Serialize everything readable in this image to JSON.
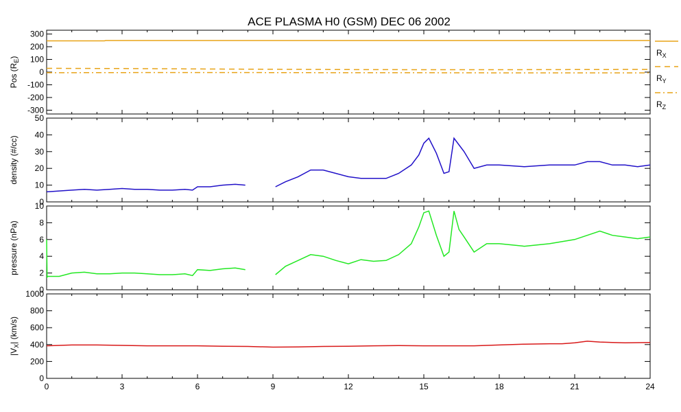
{
  "title": "ACE PLASMA H0 (GSM)   DEC 06 2002",
  "x_ticks": [
    "0",
    "3",
    "6",
    "9",
    "12",
    "15",
    "18",
    "21",
    "24"
  ],
  "colors": {
    "background": "#ffffff",
    "axes": "#000000",
    "position": "#e8a317",
    "density": "#2010c8",
    "pressure": "#22e822",
    "velocity": "#d81818"
  },
  "chart_data": [
    {
      "type": "line",
      "panel": "position",
      "ylabel": "Pos (R_E)",
      "ylabel_main": "Pos (R",
      "ylabel_sub": "E",
      "ylabel_close": ")",
      "ylim": [
        -330,
        330
      ],
      "yticks": [
        300,
        200,
        100,
        0,
        -100,
        -200,
        -300
      ],
      "ytick_labels": [
        "300",
        "200",
        "100",
        "0",
        "-100",
        "-200",
        "-300"
      ],
      "xlim": [
        0,
        24
      ],
      "legend_placement": "right",
      "series": [
        {
          "name": "R_X",
          "label_main": "R",
          "label_sub": "X",
          "style": "solid",
          "x": [
            0,
            2.3,
            2.35,
            24
          ],
          "y": [
            246,
            246,
            249,
            249
          ]
        },
        {
          "name": "R_Y",
          "label_main": "R",
          "label_sub": "Y",
          "style": "dashed",
          "x": [
            0,
            3,
            6,
            9,
            12,
            15,
            18,
            21,
            24
          ],
          "y": [
            30,
            28,
            25,
            22,
            20,
            19,
            19,
            20,
            21
          ]
        },
        {
          "name": "R_Z",
          "label_main": "R",
          "label_sub": "Z",
          "style": "dashdot",
          "x": [
            0,
            3,
            6,
            9,
            12,
            15,
            18,
            21,
            24
          ],
          "y": [
            -5,
            -4,
            -3,
            -4,
            -5,
            -5,
            -6,
            -6,
            -6
          ]
        }
      ]
    },
    {
      "type": "line",
      "panel": "density",
      "ylabel": "density (#/cc)",
      "ylim": [
        0,
        50
      ],
      "yticks": [
        0,
        10,
        20,
        30,
        40,
        50
      ],
      "ytick_labels": [
        "0",
        "10",
        "20",
        "30",
        "40",
        "50"
      ],
      "xlim": [
        0,
        24
      ],
      "series": [
        {
          "segments": [
            {
              "x": [
                0,
                0.5,
                1,
                1.5,
                2,
                2.5,
                3,
                3.5,
                4,
                4.5,
                5,
                5.5,
                5.8,
                6,
                6.5,
                7,
                7.5,
                7.9
              ],
              "y": [
                6,
                6.5,
                7,
                7.5,
                7,
                7.5,
                8,
                7.5,
                7.5,
                7,
                7,
                7.5,
                7,
                9,
                9,
                10,
                10.5,
                10
              ]
            },
            {
              "x": [
                9.1,
                9.5,
                10,
                10.5,
                11,
                11.5,
                12,
                12.5,
                13,
                13.5,
                14,
                14.5,
                14.8,
                15,
                15.2,
                15.5,
                15.8,
                16,
                16.2,
                16.4,
                16.6,
                17,
                17.5,
                18,
                19,
                20,
                21,
                21.5,
                22,
                22.5,
                23,
                23.5,
                24
              ],
              "y": [
                9,
                12,
                15,
                19,
                19,
                17,
                15,
                14,
                14,
                14,
                17,
                22,
                28,
                35,
                38,
                29,
                17,
                18,
                38,
                34,
                30,
                20,
                22,
                22,
                21,
                22,
                22,
                24,
                24,
                22,
                22,
                21,
                22
              ]
            }
          ]
        }
      ]
    },
    {
      "type": "line",
      "panel": "pressure",
      "ylabel": "pressure (nPa)",
      "ylim": [
        0,
        10
      ],
      "yticks": [
        0,
        2,
        4,
        6,
        8,
        10
      ],
      "ytick_labels": [
        "0",
        "2",
        "4",
        "6",
        "8",
        "10"
      ],
      "xlim": [
        0,
        24
      ],
      "series": [
        {
          "segments": [
            {
              "x": [
                0,
                0.02,
                0.05,
                0.5,
                1,
                1.5,
                2,
                2.5,
                3,
                3.5,
                4,
                4.5,
                5,
                5.5,
                5.8,
                6,
                6.5,
                7,
                7.5,
                7.9
              ],
              "y": [
                6,
                1.5,
                1.6,
                1.6,
                2,
                2.1,
                1.9,
                1.9,
                2,
                2,
                1.9,
                1.8,
                1.8,
                1.9,
                1.7,
                2.4,
                2.3,
                2.5,
                2.6,
                2.4
              ]
            },
            {
              "x": [
                9.1,
                9.5,
                10,
                10.5,
                11,
                11.5,
                12,
                12.5,
                13,
                13.5,
                14,
                14.5,
                14.8,
                15,
                15.2,
                15.5,
                15.8,
                16,
                16.2,
                16.4,
                16.6,
                17,
                17.5,
                18,
                19,
                20,
                21,
                21.5,
                22,
                22.5,
                23,
                23.5,
                24
              ],
              "y": [
                1.8,
                2.8,
                3.5,
                4.2,
                4,
                3.5,
                3.1,
                3.6,
                3.4,
                3.5,
                4.2,
                5.5,
                7.5,
                9.2,
                9.4,
                6.5,
                4,
                4.5,
                9.4,
                7.2,
                6.3,
                4.5,
                5.5,
                5.5,
                5.2,
                5.5,
                6,
                6.5,
                7,
                6.5,
                6.3,
                6.1,
                6.3
              ]
            }
          ]
        }
      ]
    },
    {
      "type": "line",
      "panel": "velocity",
      "ylabel": "|V_X| (km/s)",
      "ylabel_bar": "|V",
      "ylabel_sub": "X",
      "ylabel_close": "| (km/s)",
      "ylim": [
        0,
        1000
      ],
      "yticks": [
        0,
        200,
        400,
        600,
        800,
        1000
      ],
      "ytick_labels": [
        "0",
        "200",
        "400",
        "600",
        "800",
        "1000"
      ],
      "xlim": [
        0,
        24
      ],
      "series": [
        {
          "segments": [
            {
              "x": [
                0,
                1,
                2,
                3,
                4,
                5,
                6,
                7,
                8,
                9,
                10,
                11,
                12,
                13,
                14,
                15,
                16,
                17,
                18,
                19,
                20,
                20.5,
                21,
                21.5,
                22,
                22.5,
                23,
                24
              ],
              "y": [
                385,
                395,
                395,
                390,
                385,
                385,
                385,
                380,
                378,
                370,
                372,
                378,
                380,
                385,
                388,
                385,
                385,
                385,
                395,
                405,
                410,
                410,
                420,
                440,
                430,
                425,
                420,
                425
              ]
            }
          ]
        }
      ]
    }
  ]
}
